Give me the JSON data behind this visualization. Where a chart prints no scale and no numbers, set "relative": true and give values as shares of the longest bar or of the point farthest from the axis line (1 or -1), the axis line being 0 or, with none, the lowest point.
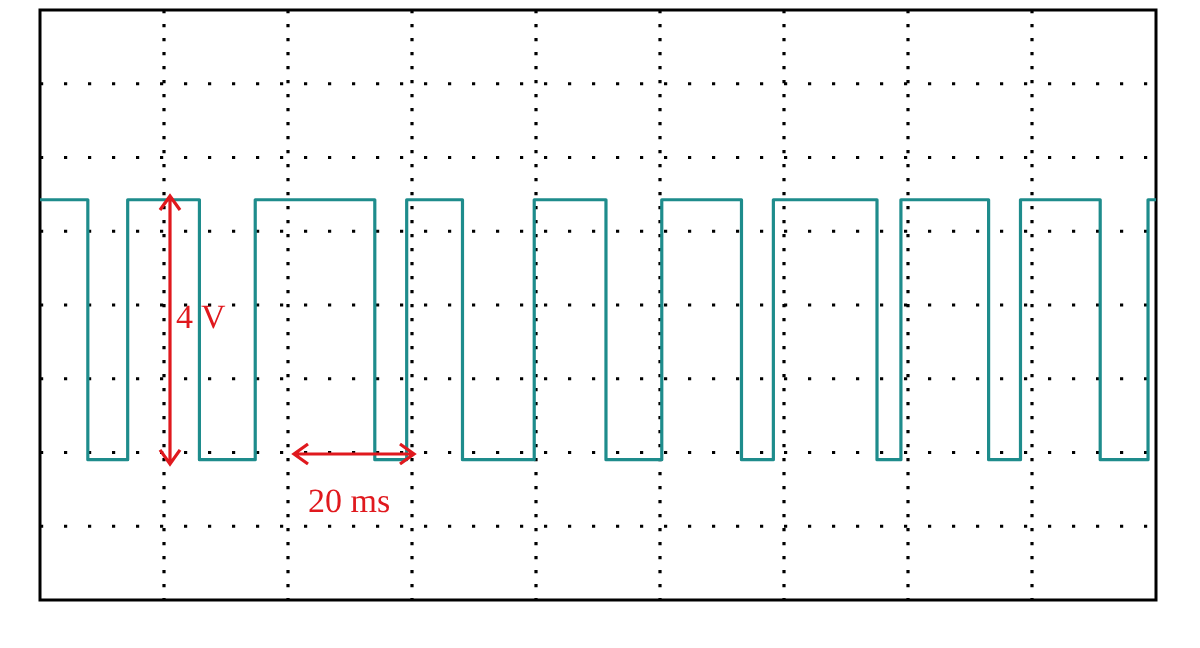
{
  "chart_data": {
    "type": "step",
    "relative": true,
    "grid": true,
    "line_style": "solid",
    "marker": "none",
    "categories": [
      null,
      null,
      null,
      null,
      null,
      null,
      null,
      null,
      null,
      null,
      null,
      null,
      null,
      null,
      null,
      null,
      null,
      null,
      null,
      null,
      null,
      null,
      null,
      null,
      null,
      null,
      null,
      null,
      null,
      null,
      null,
      null,
      null,
      null,
      null,
      null,
      null,
      null,
      null,
      null,
      null,
      null,
      null,
      null,
      null,
      null,
      null,
      null,
      null,
      null,
      null,
      null,
      null,
      null,
      null,
      null,
      null,
      null,
      null,
      null,
      null,
      null,
      null,
      null,
      null,
      null,
      null,
      null,
      null,
      null,
      null,
      null,
      null,
      null,
      null,
      null,
      null,
      null,
      null,
      null,
      null,
      null,
      null,
      null,
      null,
      null,
      null,
      null,
      null,
      null,
      null,
      null,
      null,
      null,
      null,
      null,
      null,
      null,
      null,
      null,
      null,
      null,
      null,
      null,
      null,
      null,
      null,
      null,
      null,
      null,
      null,
      null,
      null,
      null,
      null,
      null,
      null,
      null,
      null,
      null,
      null,
      null,
      null,
      null,
      null,
      null,
      null,
      null,
      null,
      null,
      null,
      null,
      null,
      null,
      null,
      null,
      null,
      null,
      null,
      null,
      null
    ],
    "series": [
      {
        "color": "#1e8c8c",
        "values": [
          1,
          1,
          1,
          1,
          1,
          1,
          1,
          0,
          0,
          0,
          0,
          0,
          1,
          1,
          1,
          1,
          1,
          1,
          1,
          1,
          1,
          0,
          0,
          0,
          0,
          0,
          0,
          0,
          1,
          1,
          1,
          1,
          1,
          1,
          1,
          1,
          1,
          1,
          1,
          1,
          1,
          1,
          1,
          0,
          0,
          0,
          0,
          1,
          1,
          1,
          1,
          1,
          1,
          1,
          0,
          0,
          0,
          0,
          0,
          0,
          0,
          0,
          0,
          1,
          1,
          1,
          1,
          1,
          1,
          1,
          1,
          1,
          0,
          0,
          0,
          0,
          0,
          0,
          0,
          1,
          1,
          1,
          1,
          1,
          1,
          1,
          1,
          1,
          1,
          0,
          0,
          0,
          0,
          1,
          1,
          1,
          1,
          1,
          1,
          1,
          1,
          1,
          1,
          1,
          1,
          1,
          0,
          0,
          0,
          1,
          1,
          1,
          1,
          1,
          1,
          1,
          1,
          1,
          1,
          1,
          0,
          0,
          0,
          0,
          1,
          1,
          1,
          1,
          1,
          1,
          1,
          1,
          1,
          1,
          0,
          0,
          0,
          0,
          0,
          0,
          1
        ]
      }
    ],
    "annotations": [
      "4 V",
      "20 ms"
    ]
  }
}
